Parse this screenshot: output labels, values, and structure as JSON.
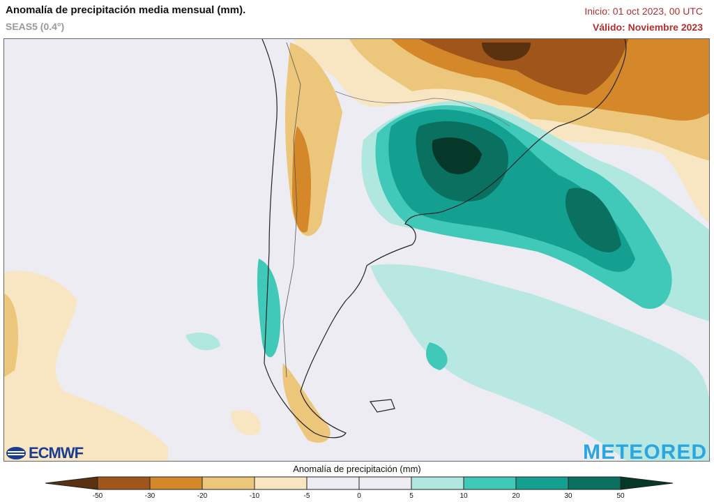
{
  "header": {
    "title": "Anomalía de precipitación media mensual (mm).",
    "subtitle": "SEAS5 (0.4°)",
    "init": "Inicio: 01 oct 2023, 00 UTC",
    "valid": "Válido: Noviembre 2023"
  },
  "logos": {
    "left": "ECMWF",
    "right": "METEORED"
  },
  "colorbar": {
    "title": "Anomalía de precipitación (mm)",
    "ticks": [
      "-50",
      "-30",
      "-20",
      "-10",
      "-5",
      "0",
      "5",
      "10",
      "20",
      "30",
      "50"
    ],
    "colors": [
      "#5a3210",
      "#a0561a",
      "#d4882a",
      "#ecc67a",
      "#f8e6c2",
      "#ececf2",
      "#ececf2",
      "#b0e8e0",
      "#40c8b8",
      "#14a090",
      "#0a7060",
      "#053828"
    ]
  }
}
